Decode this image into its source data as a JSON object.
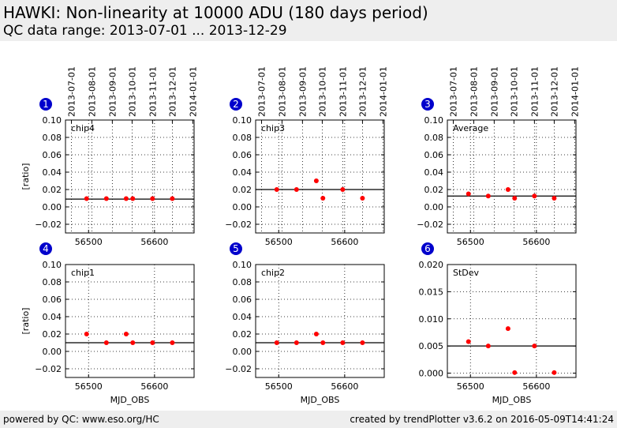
{
  "header": {
    "title": "HAWKI: Non-linearity at 10000 ADU (180 days period)",
    "subtitle": "QC data range: 2013-07-01 ... 2013-12-29"
  },
  "footer": {
    "left": "powered by QC: www.eso.org/HC",
    "right": "created by trendPlotter v3.6.2 on 2016-05-09T14:41:24"
  },
  "colors": {
    "point": "#ff0000",
    "badge": "#0000cc",
    "reference_line": "#000000",
    "header_bg": "#eeeeee"
  },
  "chart_data": [
    {
      "type": "scatter",
      "panel": "1",
      "label": "chip4",
      "ylabel": "[ratio]",
      "xlabel": "",
      "xlim": [
        56465,
        56660
      ],
      "ylim": [
        -0.03,
        0.1
      ],
      "yticks": [
        "0.10",
        "0.08",
        "0.06",
        "0.04",
        "0.02",
        "0.00",
        "−0.02"
      ],
      "ytick_values": [
        0.1,
        0.08,
        0.06,
        0.04,
        0.02,
        0.0,
        -0.02
      ],
      "xticks": [
        "56500",
        "56600"
      ],
      "xtick_values": [
        56500,
        56600
      ],
      "date_ticks": [
        "2013-07-01",
        "2013-08-01",
        "2013-09-01",
        "2013-10-01",
        "2013-11-01",
        "2013-12-01",
        "2014-01-01"
      ],
      "date_tick_mjd": [
        56474,
        56505,
        56536,
        56566,
        56597,
        56627,
        56658
      ],
      "reference": 0.009,
      "x": [
        56497,
        56527,
        56557,
        56567,
        56597,
        56627
      ],
      "y": [
        0.0095,
        0.0095,
        0.0095,
        0.0095,
        0.0095,
        0.0095
      ]
    },
    {
      "type": "scatter",
      "panel": "2",
      "label": "chip3",
      "ylabel": "",
      "xlabel": "",
      "xlim": [
        56465,
        56660
      ],
      "ylim": [
        -0.03,
        0.1
      ],
      "yticks": [
        "0.10",
        "0.08",
        "0.06",
        "0.04",
        "0.02",
        "0.00",
        "−0.02"
      ],
      "ytick_values": [
        0.1,
        0.08,
        0.06,
        0.04,
        0.02,
        0.0,
        -0.02
      ],
      "xticks": [
        "56500",
        "56600"
      ],
      "xtick_values": [
        56500,
        56600
      ],
      "date_ticks": [
        "2013-07-01",
        "2013-08-01",
        "2013-09-01",
        "2013-10-01",
        "2013-11-01",
        "2013-12-01",
        "2014-01-01"
      ],
      "date_tick_mjd": [
        56474,
        56505,
        56536,
        56566,
        56597,
        56627,
        56658
      ],
      "reference": 0.02,
      "x": [
        56497,
        56527,
        56557,
        56567,
        56597,
        56627
      ],
      "y": [
        0.02,
        0.02,
        0.03,
        0.01,
        0.02,
        0.01
      ]
    },
    {
      "type": "scatter",
      "panel": "3",
      "label": "Average",
      "ylabel": "",
      "xlabel": "",
      "xlim": [
        56465,
        56660
      ],
      "ylim": [
        -0.03,
        0.1
      ],
      "yticks": [
        "0.10",
        "0.08",
        "0.06",
        "0.04",
        "0.02",
        "0.00",
        "−0.02"
      ],
      "ytick_values": [
        0.1,
        0.08,
        0.06,
        0.04,
        0.02,
        0.0,
        -0.02
      ],
      "xticks": [
        "56500",
        "56600"
      ],
      "xtick_values": [
        56500,
        56600
      ],
      "date_ticks": [
        "2013-07-01",
        "2013-08-01",
        "2013-09-01",
        "2013-10-01",
        "2013-11-01",
        "2013-12-01",
        "2014-01-01"
      ],
      "date_tick_mjd": [
        56474,
        56505,
        56536,
        56566,
        56597,
        56627,
        56658
      ],
      "reference": 0.0125,
      "x": [
        56497,
        56527,
        56557,
        56567,
        56597,
        56627
      ],
      "y": [
        0.015,
        0.0125,
        0.02,
        0.01,
        0.0125,
        0.01
      ]
    },
    {
      "type": "scatter",
      "panel": "4",
      "label": "chip1",
      "ylabel": "[ratio]",
      "xlabel": "MJD_OBS",
      "xlim": [
        56465,
        56660
      ],
      "ylim": [
        -0.03,
        0.1
      ],
      "yticks": [
        "0.10",
        "0.08",
        "0.06",
        "0.04",
        "0.02",
        "0.00",
        "−0.02"
      ],
      "ytick_values": [
        0.1,
        0.08,
        0.06,
        0.04,
        0.02,
        0.0,
        -0.02
      ],
      "xticks": [
        "56500",
        "56600"
      ],
      "xtick_values": [
        56500,
        56600
      ],
      "reference": 0.01,
      "x": [
        56497,
        56527,
        56557,
        56567,
        56597,
        56627
      ],
      "y": [
        0.02,
        0.01,
        0.02,
        0.01,
        0.01,
        0.01
      ]
    },
    {
      "type": "scatter",
      "panel": "5",
      "label": "chip2",
      "ylabel": "",
      "xlabel": "MJD_OBS",
      "xlim": [
        56465,
        56660
      ],
      "ylim": [
        -0.03,
        0.1
      ],
      "yticks": [
        "0.10",
        "0.08",
        "0.06",
        "0.04",
        "0.02",
        "0.00",
        "−0.02"
      ],
      "ytick_values": [
        0.1,
        0.08,
        0.06,
        0.04,
        0.02,
        0.0,
        -0.02
      ],
      "xticks": [
        "56500",
        "56600"
      ],
      "xtick_values": [
        56500,
        56600
      ],
      "reference": 0.01,
      "x": [
        56497,
        56527,
        56557,
        56567,
        56597,
        56627
      ],
      "y": [
        0.01,
        0.01,
        0.02,
        0.01,
        0.01,
        0.01
      ]
    },
    {
      "type": "scatter",
      "panel": "6",
      "label": "StDev",
      "ylabel": "",
      "xlabel": "MJD_OBS",
      "xlim": [
        56465,
        56660
      ],
      "ylim": [
        -0.0008,
        0.02
      ],
      "yticks": [
        "0.020",
        "0.015",
        "0.010",
        "0.005",
        "0.000"
      ],
      "ytick_values": [
        0.02,
        0.015,
        0.01,
        0.005,
        0.0
      ],
      "xticks": [
        "56500",
        "56600"
      ],
      "xtick_values": [
        56500,
        56600
      ],
      "reference": 0.005,
      "x": [
        56497,
        56527,
        56557,
        56567,
        56597,
        56627
      ],
      "y": [
        0.0058,
        0.005,
        0.0082,
        0.0001,
        0.005,
        0.0001
      ]
    }
  ]
}
